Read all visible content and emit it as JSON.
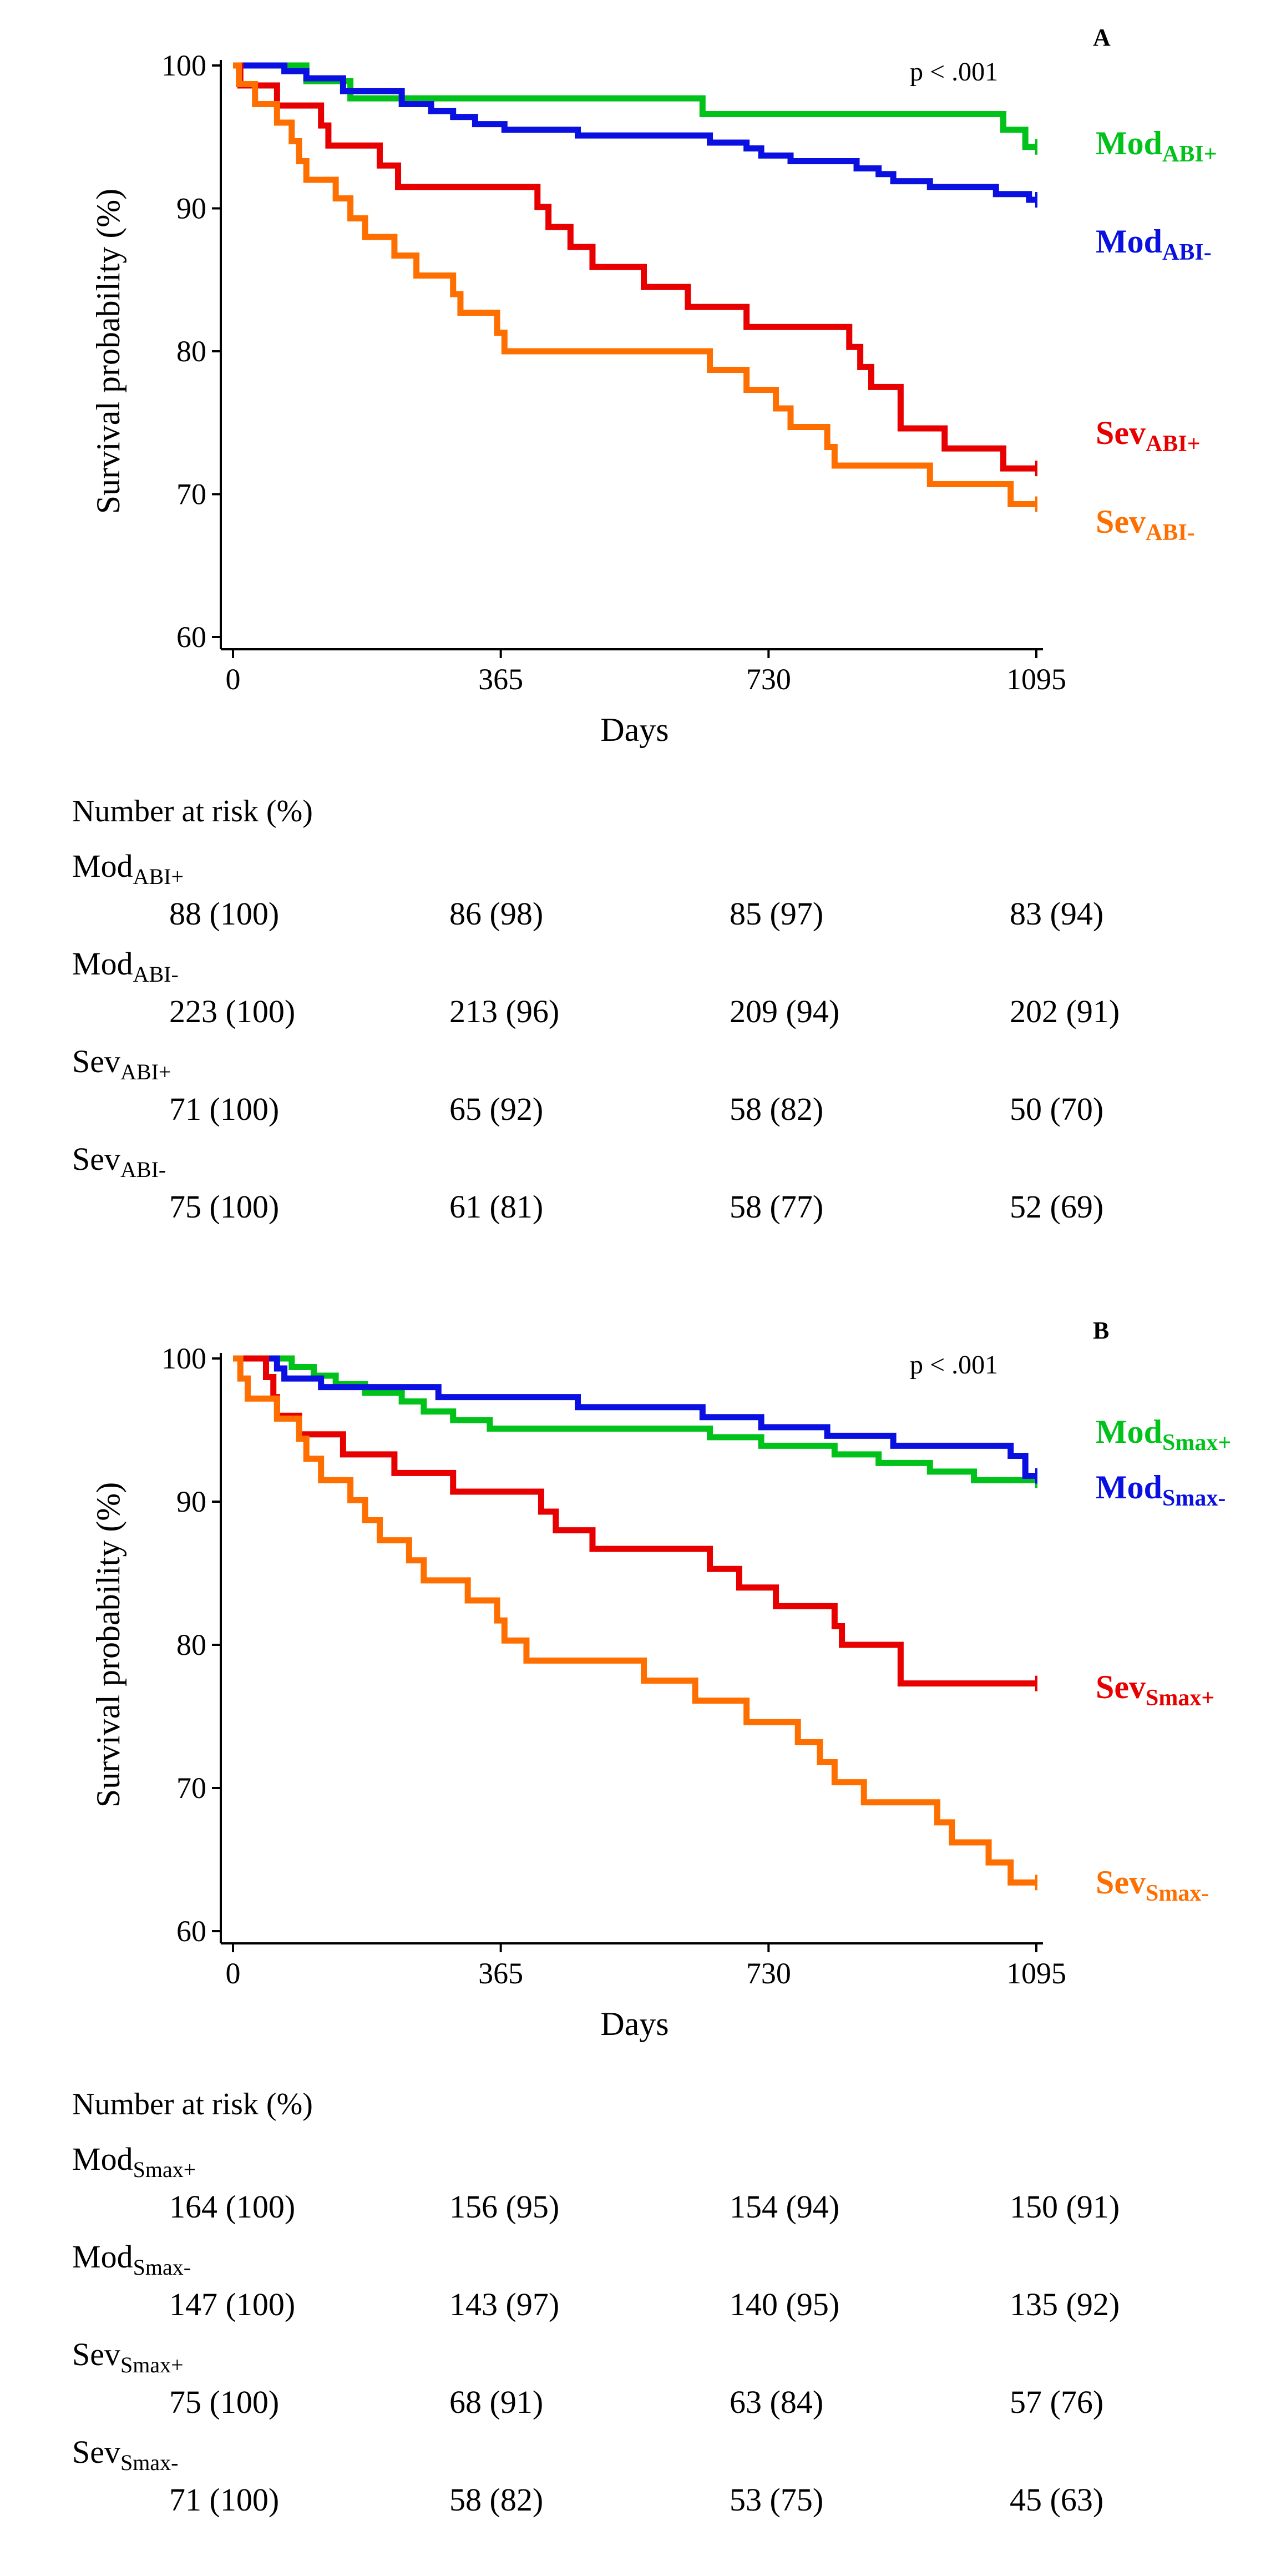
{
  "chart_data": [
    {
      "type": "line",
      "step": true,
      "panel_label": "A",
      "p_value": "p < .001",
      "xlabel": "Days",
      "ylabel": "Survival probability (%)",
      "xlim": [
        0,
        1095
      ],
      "ylim": [
        60,
        100
      ],
      "xticks": [
        0,
        365,
        730,
        1095
      ],
      "yticks": [
        60,
        70,
        80,
        90,
        100
      ],
      "series": [
        {
          "name": "Mod_ABI+",
          "label_main": "Mod",
          "label_sub": "ABI+",
          "color": "#00C21A",
          "points": [
            [
              0,
              100
            ],
            [
              100,
              98.9
            ],
            [
              160,
              97.7
            ],
            [
              640,
              96.6
            ],
            [
              1050,
              95.5
            ],
            [
              1080,
              94.3
            ],
            [
              1095,
              94.3
            ]
          ]
        },
        {
          "name": "Mod_ABI-",
          "label_main": "Mod",
          "label_sub": "ABI-",
          "color": "#0A10E0",
          "points": [
            [
              0,
              100
            ],
            [
              70,
              99.6
            ],
            [
              100,
              99.1
            ],
            [
              150,
              98.2
            ],
            [
              230,
              97.3
            ],
            [
              270,
              96.8
            ],
            [
              300,
              96.4
            ],
            [
              330,
              95.9
            ],
            [
              370,
              95.5
            ],
            [
              470,
              95.1
            ],
            [
              650,
              94.6
            ],
            [
              700,
              94.2
            ],
            [
              720,
              93.7
            ],
            [
              760,
              93.3
            ],
            [
              850,
              92.8
            ],
            [
              880,
              92.4
            ],
            [
              900,
              91.9
            ],
            [
              950,
              91.5
            ],
            [
              1040,
              91.0
            ],
            [
              1085,
              90.6
            ],
            [
              1095,
              90.6
            ]
          ]
        },
        {
          "name": "Sev_ABI+",
          "label_main": "Sev",
          "label_sub": "ABI+",
          "color": "#E80000",
          "points": [
            [
              0,
              100
            ],
            [
              10,
              98.6
            ],
            [
              60,
              97.2
            ],
            [
              120,
              95.8
            ],
            [
              130,
              94.4
            ],
            [
              200,
              93.0
            ],
            [
              225,
              91.5
            ],
            [
              415,
              90.1
            ],
            [
              430,
              88.7
            ],
            [
              460,
              87.3
            ],
            [
              490,
              85.9
            ],
            [
              560,
              84.5
            ],
            [
              620,
              83.1
            ],
            [
              700,
              81.7
            ],
            [
              840,
              80.3
            ],
            [
              855,
              78.9
            ],
            [
              870,
              77.5
            ],
            [
              910,
              74.6
            ],
            [
              970,
              73.2
            ],
            [
              1050,
              71.8
            ],
            [
              1095,
              71.8
            ]
          ]
        },
        {
          "name": "Sev_ABI-",
          "label_main": "Sev",
          "label_sub": "ABI-",
          "color": "#FF6F00",
          "points": [
            [
              0,
              100
            ],
            [
              8,
              98.7
            ],
            [
              30,
              97.3
            ],
            [
              60,
              96.0
            ],
            [
              80,
              94.7
            ],
            [
              90,
              93.3
            ],
            [
              100,
              92.0
            ],
            [
              140,
              90.7
            ],
            [
              160,
              89.3
            ],
            [
              180,
              88.0
            ],
            [
              220,
              86.7
            ],
            [
              250,
              85.3
            ],
            [
              300,
              84.0
            ],
            [
              310,
              82.7
            ],
            [
              360,
              81.3
            ],
            [
              370,
              80.0
            ],
            [
              650,
              78.7
            ],
            [
              700,
              77.3
            ],
            [
              740,
              76.0
            ],
            [
              760,
              74.7
            ],
            [
              810,
              73.3
            ],
            [
              820,
              72.0
            ],
            [
              950,
              70.7
            ],
            [
              1060,
              69.3
            ],
            [
              1095,
              69.3
            ]
          ]
        }
      ],
      "risk_table": {
        "title": "Number at risk (%)",
        "rows": [
          {
            "group_main": "Mod",
            "group_sub": "ABI+",
            "values": [
              "88 (100)",
              "86 (98)",
              "85 (97)",
              "83 (94)"
            ]
          },
          {
            "group_main": "Mod",
            "group_sub": "ABI-",
            "values": [
              "223 (100)",
              "213 (96)",
              "209 (94)",
              "202 (91)"
            ]
          },
          {
            "group_main": "Sev",
            "group_sub": "ABI+",
            "values": [
              "71 (100)",
              "65 (92)",
              "58 (82)",
              "50 (70)"
            ]
          },
          {
            "group_main": "Sev",
            "group_sub": "ABI-",
            "values": [
              "75 (100)",
              "61 (81)",
              "58 (77)",
              "52 (69)"
            ]
          }
        ]
      }
    },
    {
      "type": "line",
      "step": true,
      "panel_label": "B",
      "p_value": "p < .001",
      "xlabel": "Days",
      "ylabel": "Survival probability (%)",
      "xlim": [
        0,
        1095
      ],
      "ylim": [
        60,
        100
      ],
      "xticks": [
        0,
        365,
        730,
        1095
      ],
      "yticks": [
        60,
        70,
        80,
        90,
        100
      ],
      "series": [
        {
          "name": "Mod_Smax+",
          "label_main": "Mod",
          "label_sub": "Smax+",
          "color": "#00C21A",
          "points": [
            [
              0,
              100
            ],
            [
              80,
              99.4
            ],
            [
              110,
              98.8
            ],
            [
              140,
              98.2
            ],
            [
              180,
              97.6
            ],
            [
              230,
              97.0
            ],
            [
              260,
              96.3
            ],
            [
              300,
              95.7
            ],
            [
              350,
              95.1
            ],
            [
              650,
              94.5
            ],
            [
              720,
              93.9
            ],
            [
              820,
              93.3
            ],
            [
              880,
              92.7
            ],
            [
              950,
              92.1
            ],
            [
              1010,
              91.5
            ],
            [
              1095,
              91.5
            ]
          ]
        },
        {
          "name": "Mod_Smax-",
          "label_main": "Mod",
          "label_sub": "Smax-",
          "color": "#0A10E0",
          "points": [
            [
              0,
              100
            ],
            [
              60,
              99.3
            ],
            [
              70,
              98.6
            ],
            [
              120,
              98.0
            ],
            [
              280,
              97.3
            ],
            [
              470,
              96.6
            ],
            [
              640,
              95.9
            ],
            [
              720,
              95.2
            ],
            [
              810,
              94.6
            ],
            [
              900,
              93.9
            ],
            [
              1060,
              93.2
            ],
            [
              1080,
              91.8
            ],
            [
              1095,
              91.8
            ]
          ]
        },
        {
          "name": "Sev_Smax+",
          "label_main": "Sev",
          "label_sub": "Smax+",
          "color": "#E80000",
          "points": [
            [
              0,
              100
            ],
            [
              45,
              98.7
            ],
            [
              55,
              97.3
            ],
            [
              60,
              96.0
            ],
            [
              90,
              94.7
            ],
            [
              150,
              93.3
            ],
            [
              220,
              92.0
            ],
            [
              300,
              90.7
            ],
            [
              420,
              89.3
            ],
            [
              440,
              88.0
            ],
            [
              490,
              86.7
            ],
            [
              650,
              85.3
            ],
            [
              690,
              84.0
            ],
            [
              740,
              82.7
            ],
            [
              820,
              81.3
            ],
            [
              830,
              80.0
            ],
            [
              910,
              77.3
            ],
            [
              1095,
              77.3
            ]
          ]
        },
        {
          "name": "Sev_Smax-",
          "label_main": "Sev",
          "label_sub": "Smax-",
          "color": "#FF6F00",
          "points": [
            [
              0,
              100
            ],
            [
              10,
              98.6
            ],
            [
              20,
              97.2
            ],
            [
              60,
              95.8
            ],
            [
              90,
              94.4
            ],
            [
              100,
              93.0
            ],
            [
              120,
              91.5
            ],
            [
              160,
              90.1
            ],
            [
              180,
              88.7
            ],
            [
              200,
              87.3
            ],
            [
              240,
              85.9
            ],
            [
              260,
              84.5
            ],
            [
              320,
              83.1
            ],
            [
              360,
              81.7
            ],
            [
              370,
              80.3
            ],
            [
              400,
              78.9
            ],
            [
              560,
              77.5
            ],
            [
              630,
              76.1
            ],
            [
              700,
              74.6
            ],
            [
              770,
              73.2
            ],
            [
              800,
              71.8
            ],
            [
              820,
              70.4
            ],
            [
              860,
              69.0
            ],
            [
              960,
              67.6
            ],
            [
              980,
              66.2
            ],
            [
              1030,
              64.8
            ],
            [
              1060,
              63.4
            ],
            [
              1095,
              63.4
            ]
          ]
        }
      ],
      "risk_table": {
        "title": "Number at risk (%)",
        "rows": [
          {
            "group_main": "Mod",
            "group_sub": "Smax+",
            "values": [
              "164 (100)",
              "156 (95)",
              "154 (94)",
              "150 (91)"
            ]
          },
          {
            "group_main": "Mod",
            "group_sub": "Smax-",
            "values": [
              "147 (100)",
              "143 (97)",
              "140 (95)",
              "135 (92)"
            ]
          },
          {
            "group_main": "Sev",
            "group_sub": "Smax+",
            "values": [
              "75 (100)",
              "68 (91)",
              "63 (84)",
              "57 (76)"
            ]
          },
          {
            "group_main": "Sev",
            "group_sub": "Smax-",
            "values": [
              "71 (100)",
              "58 (82)",
              "53 (75)",
              "45 (63)"
            ]
          }
        ]
      }
    }
  ]
}
